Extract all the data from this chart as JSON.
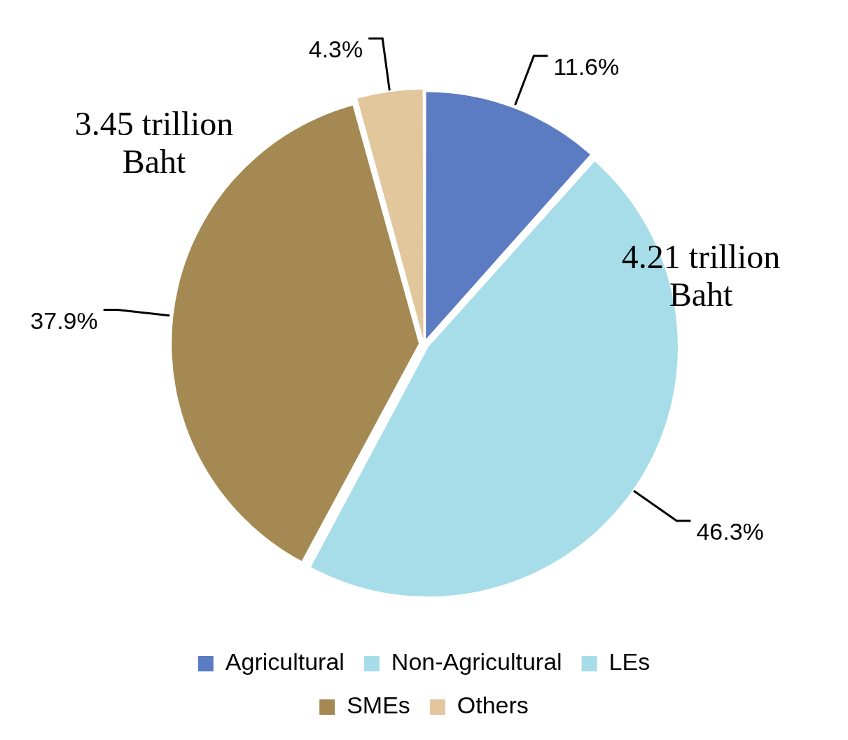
{
  "chart_data": {
    "type": "pie",
    "categories": [
      "Agricultural",
      "Non-Agricultural",
      "LEs",
      "SMEs",
      "Others"
    ],
    "values": [
      11.6,
      null,
      46.3,
      37.9,
      4.3
    ],
    "colors": [
      "#5b7cc2",
      "#a6dde8",
      "#a6dde8",
      "#a48a52",
      "#e2c69c"
    ],
    "value_labels": [
      "11.6%",
      null,
      "46.3%",
      "37.9%",
      "4.3%"
    ],
    "annotations": [
      "3.45 trillion Baht",
      "4.21 trillion Baht"
    ],
    "legend": "bottom"
  }
}
